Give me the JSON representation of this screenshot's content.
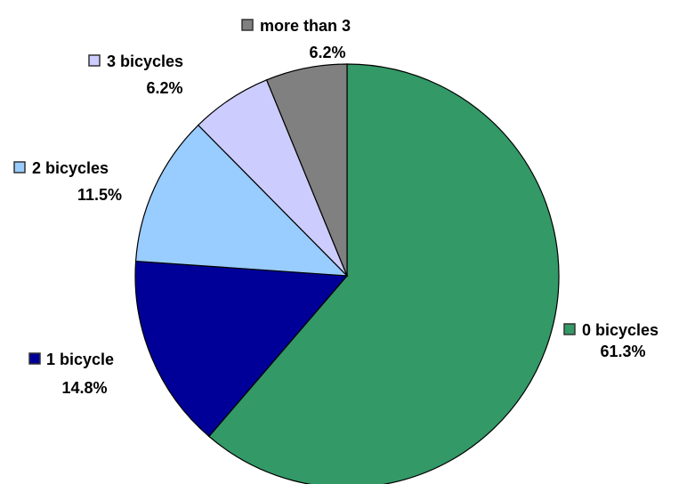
{
  "chart_data": {
    "type": "pie",
    "categories": [
      "0 bicycles",
      "1 bicycle",
      "2 bicycles",
      "3 bicycles",
      "more than 3"
    ],
    "values": [
      61.3,
      14.8,
      11.5,
      6.2,
      6.2
    ],
    "value_labels": [
      "61.3%",
      "14.8%",
      "11.5%",
      "6.2%",
      "6.2%"
    ],
    "colors": [
      "#339966",
      "#000099",
      "#99ccff",
      "#ccccff",
      "#808080"
    ]
  }
}
